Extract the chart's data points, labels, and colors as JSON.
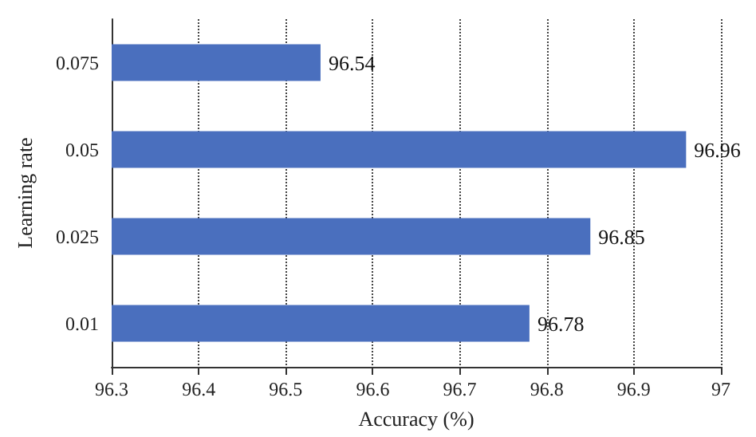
{
  "chart_data": {
    "type": "bar",
    "orientation": "horizontal",
    "xlabel": "Accuracy (%)",
    "ylabel": "Learning rate",
    "categories": [
      "0.075",
      "0.05",
      "0.025",
      "0.01"
    ],
    "values": [
      96.54,
      96.96,
      96.85,
      96.78
    ],
    "color": "#4a6fbe",
    "xlim": [
      96.3,
      97
    ],
    "xticks": [
      96.3,
      96.4,
      96.5,
      96.6,
      96.7,
      96.8,
      96.9,
      97
    ],
    "grid": "x",
    "data_labels": true
  }
}
